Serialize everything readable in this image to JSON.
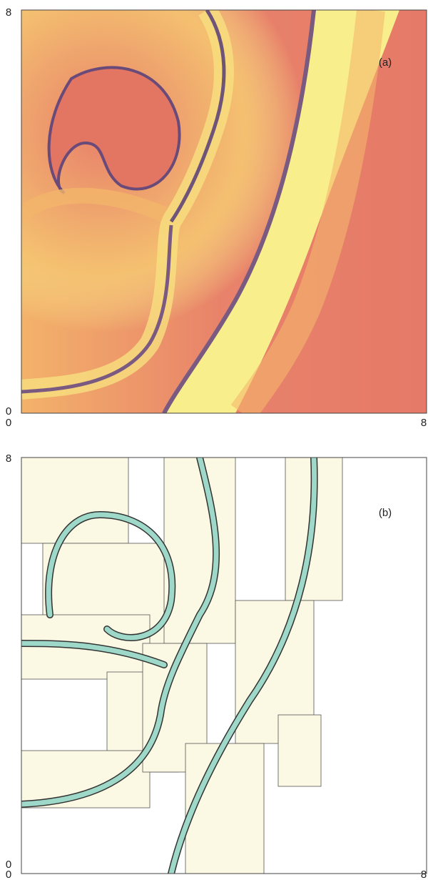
{
  "panels": [
    {
      "label": "(a)",
      "y_top": "8",
      "y_bottom": "0",
      "x_left": "0",
      "x_right": "8"
    },
    {
      "label": "(b)",
      "y_top": "8",
      "y_bottom": "0",
      "x_left": "0",
      "x_right": "8"
    }
  ]
}
